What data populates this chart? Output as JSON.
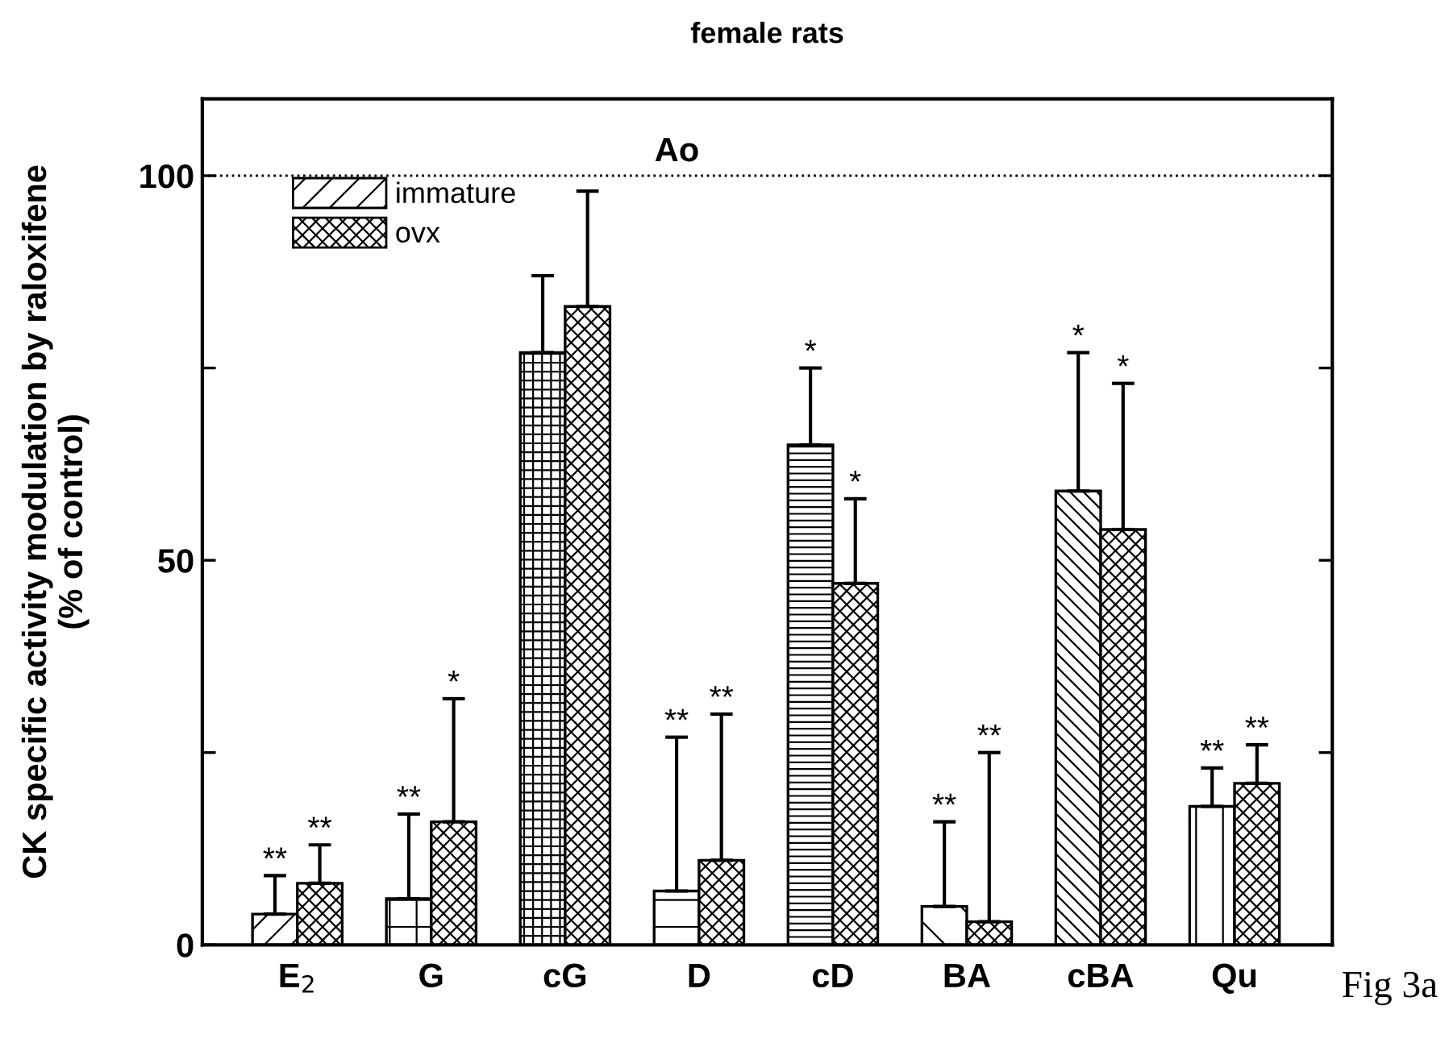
{
  "chart_data": {
    "type": "bar",
    "title": "female rats",
    "ylabel": "CK specific activity modulation by raloxifene\n(% of control)",
    "categories": [
      "E$_{2}$",
      "G",
      "cG",
      "D",
      "cD",
      "BA",
      "cBA",
      "Qu"
    ],
    "series": [
      {
        "name": "immature",
        "color": "#000000",
        "values": [
          4,
          6,
          77,
          7,
          65,
          5,
          59,
          18
        ],
        "errors": [
          [
            4,
            9
          ],
          [
            6,
            17
          ],
          [
            77,
            87
          ],
          [
            7,
            27
          ],
          [
            65,
            75
          ],
          [
            5,
            16
          ],
          [
            59,
            77
          ],
          [
            18,
            23
          ]
        ]
      },
      {
        "name": "ovx",
        "color": "#000000",
        "values": [
          8,
          16,
          83,
          11,
          47,
          3,
          54,
          21
        ],
        "errors": [
          [
            8,
            13
          ],
          [
            16,
            32
          ],
          [
            83,
            98
          ],
          [
            11,
            30
          ],
          [
            47,
            58
          ],
          [
            3,
            25
          ],
          [
            54,
            73
          ],
          [
            21,
            26
          ]
        ]
      }
    ],
    "ylim": [
      0,
      110
    ],
    "yticks": [
      0,
      {
        "value": 25,
        "label": null
      },
      50,
      {
        "value": 75,
        "label": null
      },
      100
    ],
    "ref_lines": [
      {
        "axis": "y",
        "value": 100,
        "line_style": "dotted",
        "color": "#000000"
      }
    ],
    "annotations": [
      "**",
      "**",
      "**",
      "*",
      "**",
      "**",
      "*",
      "*",
      "**",
      "**",
      "*",
      "*",
      "**",
      "**",
      "Ao",
      "Fig 3a"
    ],
    "legend": "top left",
    "grid": false
  }
}
